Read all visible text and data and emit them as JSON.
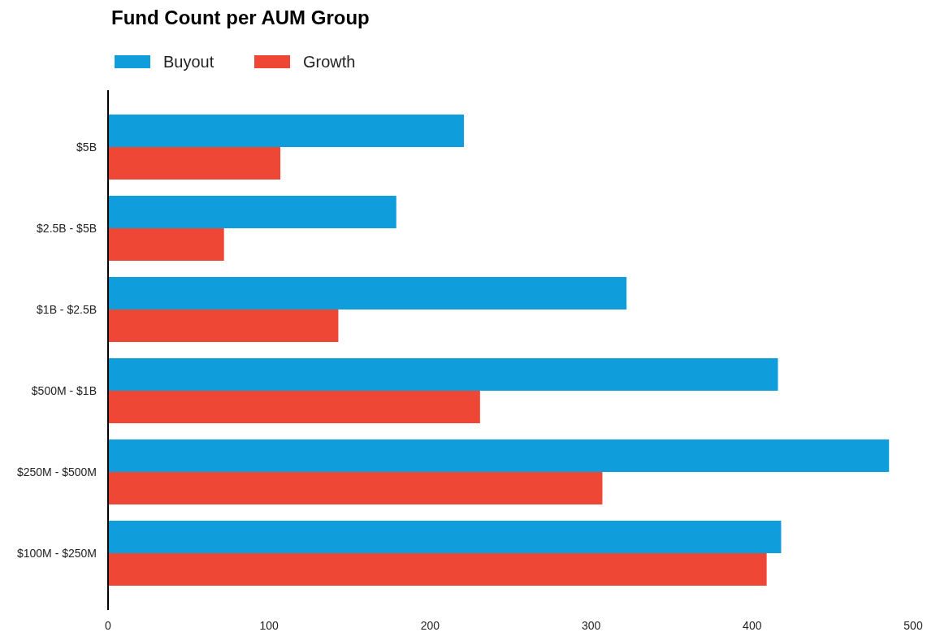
{
  "chart_data": {
    "type": "bar",
    "title": "Fund Count per AUM Group",
    "orientation": "horizontal",
    "categories": [
      "$5B",
      "$2.5B - $5B",
      "$1B - $2.5B",
      "$500M - $1B",
      "$250M - $500M",
      "$100M - $250M"
    ],
    "series": [
      {
        "name": "Buyout",
        "color": "#0f9edb",
        "values": [
          221,
          179,
          322,
          416,
          485,
          418
        ]
      },
      {
        "name": "Growth",
        "color": "#ef4736",
        "values": [
          107,
          72,
          143,
          231,
          307,
          409
        ]
      }
    ],
    "xlim": [
      0,
      500
    ],
    "xticks": [
      0,
      100,
      200,
      300,
      400,
      500
    ],
    "grid": false,
    "legend": "top left"
  }
}
